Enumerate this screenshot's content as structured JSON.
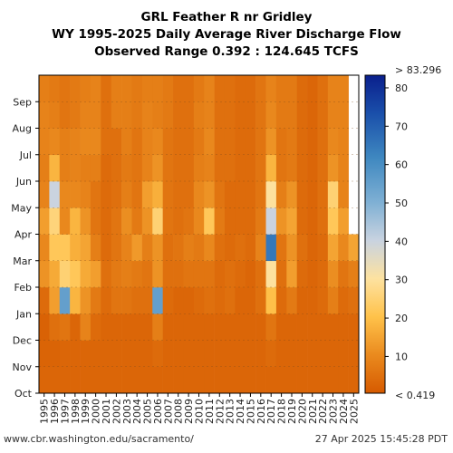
{
  "chart_data": {
    "type": "heatmap",
    "title": "GRL Feather R nr Gridley",
    "subtitle": "WY 1995-2025 Daily Average River Discharge Flow",
    "subtitle2": "Observed Range 0.392 : 124.645 TCFS",
    "x_categories": [
      "1995",
      "1996",
      "1997",
      "1998",
      "1999",
      "2000",
      "2001",
      "2002",
      "2003",
      "2004",
      "2005",
      "2006",
      "2007",
      "2008",
      "2009",
      "2010",
      "2011",
      "2012",
      "2013",
      "2014",
      "2015",
      "2016",
      "2017",
      "2018",
      "2019",
      "2020",
      "2021",
      "2022",
      "2023",
      "2024",
      "2025"
    ],
    "y_categories": [
      "Oct",
      "Nov",
      "Dec",
      "Jan",
      "Feb",
      "Mar",
      "Apr",
      "May",
      "Jun",
      "Jul",
      "Aug",
      "Sep"
    ],
    "colorbar": {
      "ticks": [
        10,
        20,
        30,
        40,
        50,
        60,
        70,
        80
      ],
      "min_label": "< 0.419",
      "max_label": "> 83.296",
      "range": [
        0.419,
        83.296
      ]
    },
    "approx_monthly_flow_tcfs": [
      [
        3,
        2.5,
        2,
        4,
        12,
        10,
        14,
        9,
        8,
        9,
        9,
        8
      ],
      [
        3,
        2.5,
        5,
        14,
        16,
        22,
        26,
        40,
        18,
        10,
        8,
        7
      ],
      [
        3,
        3,
        6,
        55,
        25,
        22,
        10,
        10,
        8,
        8,
        6,
        6
      ],
      [
        3,
        3,
        3,
        18,
        22,
        17,
        18,
        10,
        9,
        9,
        7,
        7
      ],
      [
        3,
        3,
        9,
        12,
        16,
        15,
        12,
        9,
        8,
        10,
        9,
        8
      ],
      [
        3,
        3,
        4,
        7,
        14,
        8,
        6,
        6,
        8,
        10,
        9,
        9
      ],
      [
        3,
        3,
        3,
        4,
        5,
        4,
        4,
        4,
        4,
        5,
        5,
        5
      ],
      [
        3,
        3,
        3,
        6,
        7,
        6,
        6,
        5,
        5,
        5,
        8,
        8
      ],
      [
        3,
        3,
        3,
        6,
        8,
        9,
        11,
        8,
        7,
        8,
        8,
        8
      ],
      [
        3,
        3,
        3,
        5,
        7,
        13,
        7,
        6,
        6,
        6,
        7,
        7
      ],
      [
        3,
        3,
        3,
        5,
        6,
        8,
        12,
        14,
        9,
        9,
        9,
        8
      ],
      [
        3,
        4,
        8,
        55,
        12,
        12,
        25,
        17,
        12,
        10,
        8,
        8
      ],
      [
        3,
        3,
        3,
        4,
        5,
        5,
        6,
        6,
        6,
        6,
        7,
        7
      ],
      [
        3,
        3,
        3,
        3,
        5,
        6,
        5,
        5,
        5,
        5,
        5,
        5
      ],
      [
        3,
        3,
        3,
        3,
        6,
        8,
        6,
        5,
        5,
        5,
        5,
        5
      ],
      [
        3,
        3,
        3,
        4,
        6,
        7,
        10,
        10,
        8,
        7,
        8,
        7
      ],
      [
        3,
        3,
        3,
        5,
        6,
        10,
        22,
        12,
        9,
        10,
        9,
        9
      ],
      [
        3,
        3,
        3,
        4,
        4,
        5,
        7,
        6,
        5,
        5,
        5,
        5
      ],
      [
        3,
        3,
        3,
        5,
        5,
        4,
        4,
        4,
        5,
        5,
        5,
        5
      ],
      [
        3,
        3,
        3,
        3,
        4,
        5,
        4,
        4,
        4,
        4,
        4,
        4
      ],
      [
        3,
        3,
        3,
        3,
        3,
        4,
        4,
        4,
        4,
        4,
        4,
        4
      ],
      [
        3,
        3,
        3,
        5,
        5,
        9,
        7,
        6,
        6,
        6,
        6,
        6
      ],
      [
        3,
        4,
        6,
        20,
        30,
        65,
        40,
        30,
        18,
        12,
        10,
        9
      ],
      [
        3,
        3,
        3,
        4,
        5,
        6,
        12,
        8,
        6,
        6,
        7,
        7
      ],
      [
        3,
        3,
        3,
        7,
        14,
        12,
        15,
        12,
        7,
        7,
        7,
        7
      ],
      [
        3,
        3,
        3,
        3,
        4,
        5,
        4,
        4,
        4,
        4,
        4,
        4
      ],
      [
        3,
        3,
        3,
        3,
        3,
        3,
        3,
        3,
        3,
        3,
        3,
        3
      ],
      [
        3,
        3,
        3,
        4,
        4,
        4,
        5,
        5,
        5,
        5,
        5,
        5
      ],
      [
        3,
        3,
        3,
        8,
        11,
        15,
        22,
        25,
        12,
        10,
        9,
        9
      ],
      [
        3,
        3,
        3,
        4,
        6,
        10,
        14,
        9,
        9,
        9,
        9,
        9
      ],
      [
        3,
        3,
        3,
        5,
        8,
        15,
        null,
        null,
        null,
        null,
        null,
        null
      ]
    ],
    "xlabel": "",
    "ylabel": ""
  },
  "footer": {
    "left": "www.cbr.washington.edu/sacramento/",
    "right": "27 Apr 2025 15:45:28 PDT"
  }
}
